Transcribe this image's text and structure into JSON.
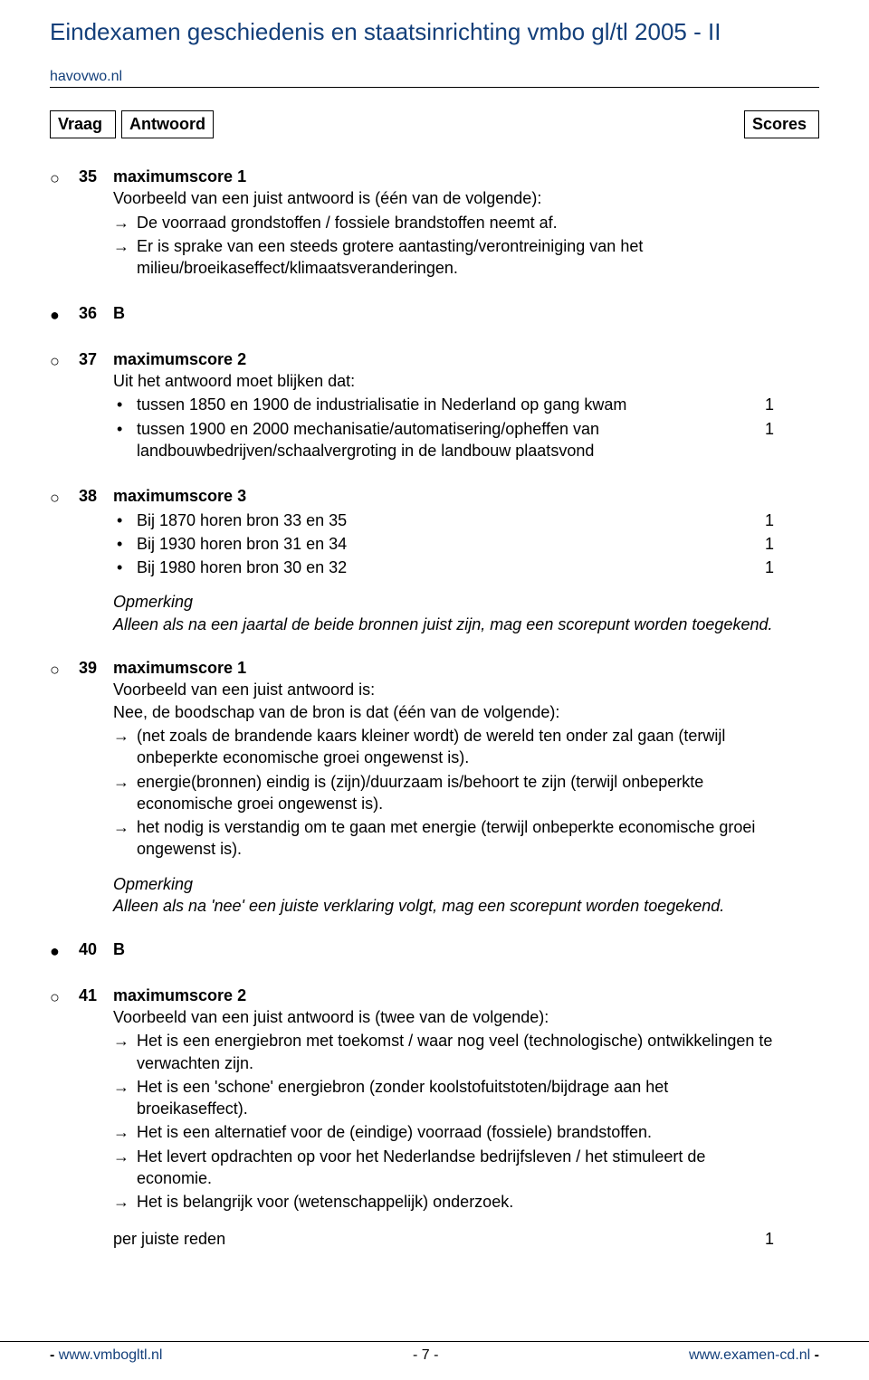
{
  "doc": {
    "title": "Eindexamen geschiedenis en staatsinrichting vmbo gl/tl  2005 - II",
    "site": "havovwo.nl"
  },
  "header": {
    "vraag": "Vraag",
    "antwoord": "Antwoord",
    "scores": "Scores"
  },
  "markers": {
    "open": "○",
    "filled": "●"
  },
  "q35": {
    "num": "35",
    "ms": "maximumscore 1",
    "intro": "Voorbeeld van een juist antwoord is (één van de volgende):",
    "a1": "De voorraad grondstoffen / fossiele brandstoffen neemt af.",
    "a2": "Er is sprake van een steeds grotere aantasting/verontreiniging van het milieu/broeikaseffect/klimaatsveranderingen."
  },
  "q36": {
    "num": "36",
    "ans": "B"
  },
  "q37": {
    "num": "37",
    "ms": "maximumscore 2",
    "intro": "Uit het antwoord moet blijken dat:",
    "b1": "tussen 1850 en 1900 de industrialisatie in Nederland op gang kwam",
    "b1pt": "1",
    "b2": "tussen 1900 en 2000 mechanisatie/automatisering/opheffen van landbouwbedrijven/schaalvergroting in de landbouw plaatsvond",
    "b2pt": "1"
  },
  "q38": {
    "num": "38",
    "ms": "maximumscore 3",
    "b1": "Bij 1870 horen bron 33 en 35",
    "b1pt": "1",
    "b2": "Bij 1930 horen bron 31 en 34",
    "b2pt": "1",
    "b3": "Bij 1980 horen bron 30 en 32",
    "b3pt": "1",
    "opm_head": "Opmerking",
    "opm_body": "Alleen als na een jaartal de beide bronnen juist zijn, mag een scorepunt worden toegekend."
  },
  "q39": {
    "num": "39",
    "ms": "maximumscore 1",
    "intro1": "Voorbeeld van een juist antwoord is:",
    "intro2": "Nee, de boodschap van de bron is dat (één van de volgende):",
    "a1": "(net zoals de brandende kaars kleiner wordt) de wereld ten onder zal gaan (terwijl onbeperkte economische groei ongewenst is).",
    "a2": "energie(bronnen) eindig is (zijn)/duurzaam is/behoort te zijn (terwijl onbeperkte economische groei ongewenst is).",
    "a3": "het nodig is verstandig om te gaan met energie (terwijl onbeperkte economische groei ongewenst is).",
    "opm_head": "Opmerking",
    "opm_body": "Alleen als na 'nee' een juiste verklaring volgt, mag een scorepunt worden toegekend."
  },
  "q40": {
    "num": "40",
    "ans": "B"
  },
  "q41": {
    "num": "41",
    "ms": "maximumscore 2",
    "intro": "Voorbeeld van een juist antwoord is (twee van de volgende):",
    "a1": "Het is een energiebron met toekomst / waar nog veel (technologische) ontwikkelingen te verwachten zijn.",
    "a2": "Het is een 'schone' energiebron (zonder koolstofuitstoten/bijdrage aan het broeikaseffect).",
    "a3": "Het is een alternatief voor de (eindige) voorraad (fossiele) brandstoffen.",
    "a4": "Het levert opdrachten op voor het Nederlandse bedrijfsleven / het stimuleert de economie.",
    "a5": "Het is belangrijk voor (wetenschappelijk) onderzoek.",
    "per": "per juiste reden",
    "perpt": "1"
  },
  "footer": {
    "left": "www.vmbogltl.nl",
    "mid": "- 7 -",
    "right": "www.examen-cd.nl",
    "dash": "-"
  }
}
